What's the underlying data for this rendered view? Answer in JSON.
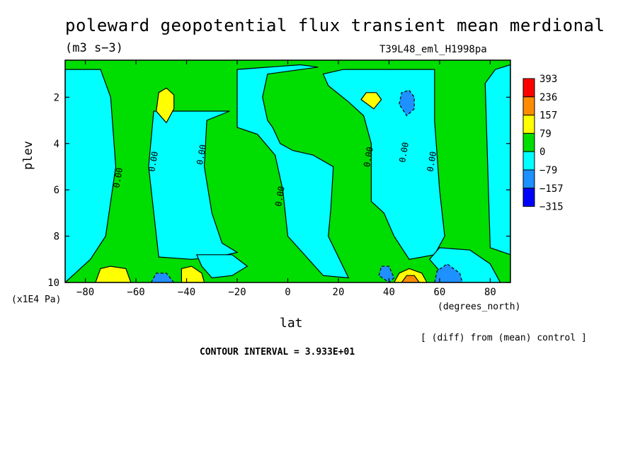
{
  "chart_data": {
    "type": "heatmap",
    "title": "poleward geopotential flux transient mean merdional",
    "units": "(m3 s−3)",
    "run_label": "T39L48_eml_H1998pa",
    "xlabel": "lat",
    "x_unit": "(degrees_north)",
    "ylabel": "plev",
    "y_unit": "(x1E4 Pa)",
    "diff_note": "[ (diff) from (mean) control ]",
    "contour_interval_text": "CONTOUR INTERVAL = 3.933E+01",
    "xlim": [
      -88,
      88
    ],
    "ylim": [
      10,
      0.4
    ],
    "x_ticks": [
      -80,
      -60,
      -40,
      -20,
      0,
      20,
      40,
      60,
      80
    ],
    "x_tick_labels": [
      "−80",
      "−60",
      "−40",
      "−20",
      "0",
      "20",
      "40",
      "60",
      "80"
    ],
    "y_ticks": [
      2,
      4,
      6,
      8,
      10
    ],
    "y_tick_labels": [
      "2",
      "4",
      "6",
      "8",
      "10"
    ],
    "legend_levels": [
      "393",
      "236",
      "157",
      "79",
      "0",
      "−79",
      "−157",
      "−315"
    ],
    "legend_colors": [
      "#ff0000",
      "#ff8c00",
      "#ffff00",
      "#00dd00",
      "#00ffff",
      "#1e90ff",
      "#0000ff"
    ],
    "contour_label": "0.00",
    "background_class": {
      "value_range": "0 to 79",
      "color": "#00dd00"
    },
    "regions": [
      {
        "class": "-79 to 0",
        "color": "#00ffff",
        "polygon": [
          [
            -88,
            10
          ],
          [
            -88,
            0.8
          ],
          [
            -74,
            0.8
          ],
          [
            -70,
            2
          ],
          [
            -68,
            5
          ],
          [
            -72,
            8
          ],
          [
            -78,
            9
          ],
          [
            -84,
            9.6
          ]
        ]
      },
      {
        "class": "-79 to 0",
        "color": "#00ffff",
        "polygon": [
          [
            -51,
            8.9
          ],
          [
            -55,
            5
          ],
          [
            -53,
            2.6
          ],
          [
            -47,
            2.6
          ],
          [
            -40,
            2.6
          ],
          [
            -33,
            2.6
          ],
          [
            -26,
            2.6
          ],
          [
            -23,
            2.6
          ],
          [
            -32,
            3
          ],
          [
            -33,
            5
          ],
          [
            -30,
            7
          ],
          [
            -26,
            8.3
          ],
          [
            -20,
            8.7
          ],
          [
            -28,
            8.9
          ],
          [
            -38,
            9
          ]
        ]
      },
      {
        "class": "-79 to 0",
        "color": "#00ffff",
        "polygon": [
          [
            -20,
            3.3
          ],
          [
            -20,
            0.8
          ],
          [
            5,
            0.6
          ],
          [
            12,
            0.7
          ],
          [
            -8,
            1
          ],
          [
            -10,
            2
          ],
          [
            -8,
            3
          ],
          [
            -6,
            3.3
          ],
          [
            -3,
            4
          ],
          [
            2,
            4.3
          ],
          [
            10,
            4.5
          ],
          [
            18,
            5
          ],
          [
            17,
            6.8
          ],
          [
            16,
            8
          ],
          [
            24,
            9.8
          ],
          [
            14,
            9.7
          ],
          [
            0,
            8
          ],
          [
            -2,
            6
          ],
          [
            -5,
            4.5
          ],
          [
            -12,
            3.6
          ]
        ]
      },
      {
        "class": "-79 to 0",
        "color": "#00ffff",
        "polygon": [
          [
            33,
            6.5
          ],
          [
            33,
            4
          ],
          [
            30,
            2.8
          ],
          [
            24,
            2.2
          ],
          [
            16,
            1.5
          ],
          [
            14,
            1
          ],
          [
            22,
            0.8
          ],
          [
            30,
            0.8
          ],
          [
            40,
            0.8
          ],
          [
            50,
            0.8
          ],
          [
            58,
            0.8
          ],
          [
            58,
            3
          ],
          [
            60,
            6
          ],
          [
            62,
            8
          ],
          [
            58,
            8.8
          ],
          [
            48,
            9
          ],
          [
            42,
            8
          ],
          [
            38,
            7
          ]
        ]
      },
      {
        "class": "-79 to 0",
        "color": "#00ffff",
        "polygon": [
          [
            80,
            8.5
          ],
          [
            78,
            1.4
          ],
          [
            82,
            0.8
          ],
          [
            88,
            0.6
          ],
          [
            88,
            8.8
          ]
        ]
      },
      {
        "class": "-79 to 0",
        "color": "#00ffff",
        "polygon": [
          [
            -34,
            9.3
          ],
          [
            -36,
            8.8
          ],
          [
            -22,
            8.8
          ],
          [
            -16,
            9.3
          ],
          [
            -22,
            9.7
          ],
          [
            -30,
            9.8
          ]
        ]
      },
      {
        "class": "-79 to 0",
        "color": "#00ffff",
        "polygon": [
          [
            64,
            10
          ],
          [
            56,
            9
          ],
          [
            60,
            8.5
          ],
          [
            72,
            8.6
          ],
          [
            80,
            9.2
          ],
          [
            84,
            10
          ]
        ]
      },
      {
        "class": "79 to 157",
        "color": "#ffff00",
        "polygon": [
          [
            -52,
            2.6
          ],
          [
            -51,
            1.8
          ],
          [
            -48,
            1.6
          ],
          [
            -45,
            1.9
          ],
          [
            -45,
            2.5
          ],
          [
            -48,
            3.1
          ]
        ]
      },
      {
        "class": "79 to 157",
        "color": "#ffff00",
        "polygon": [
          [
            -76,
            10
          ],
          [
            -74,
            9.4
          ],
          [
            -70,
            9.3
          ],
          [
            -64,
            9.4
          ],
          [
            -62,
            10
          ]
        ]
      },
      {
        "class": "79 to 157",
        "color": "#ffff00",
        "polygon": [
          [
            -42,
            10
          ],
          [
            -42,
            9.4
          ],
          [
            -38,
            9.3
          ],
          [
            -34,
            9.6
          ],
          [
            -33,
            10
          ]
        ]
      },
      {
        "class": "79 to 157",
        "color": "#ffff00",
        "polygon": [
          [
            29,
            2.1
          ],
          [
            31,
            1.8
          ],
          [
            35,
            1.8
          ],
          [
            37,
            2.1
          ],
          [
            34,
            2.5
          ]
        ]
      },
      {
        "class": "79 to 157",
        "color": "#ffff00",
        "polygon": [
          [
            42,
            10
          ],
          [
            44,
            9.6
          ],
          [
            48,
            9.4
          ],
          [
            53,
            9.6
          ],
          [
            55,
            10
          ]
        ]
      },
      {
        "class": "157 to 236",
        "color": "#ff8c00",
        "polygon": [
          [
            45,
            10
          ],
          [
            47,
            9.7
          ],
          [
            50,
            9.7
          ],
          [
            52,
            10
          ]
        ]
      },
      {
        "class": "-157 to -79",
        "color": "#1e90ff",
        "polygon": [
          [
            44,
            2.3
          ],
          [
            45,
            1.8
          ],
          [
            48,
            1.7
          ],
          [
            50,
            2
          ],
          [
            50,
            2.5
          ],
          [
            47,
            2.8
          ]
        ]
      },
      {
        "class": "-157 to -79",
        "color": "#1e90ff",
        "polygon": [
          [
            -54,
            10
          ],
          [
            -52,
            9.6
          ],
          [
            -48,
            9.6
          ],
          [
            -45,
            10
          ]
        ]
      },
      {
        "class": "-157 to -79",
        "color": "#1e90ff",
        "polygon": [
          [
            36,
            9.7
          ],
          [
            37,
            9.3
          ],
          [
            40,
            9.3
          ],
          [
            42,
            9.8
          ],
          [
            40,
            10
          ]
        ]
      },
      {
        "class": "-157 to -79",
        "color": "#1e90ff",
        "polygon": [
          [
            58,
            10
          ],
          [
            59,
            9.5
          ],
          [
            63,
            9.2
          ],
          [
            68,
            9.6
          ],
          [
            69,
            10
          ]
        ]
      }
    ]
  }
}
